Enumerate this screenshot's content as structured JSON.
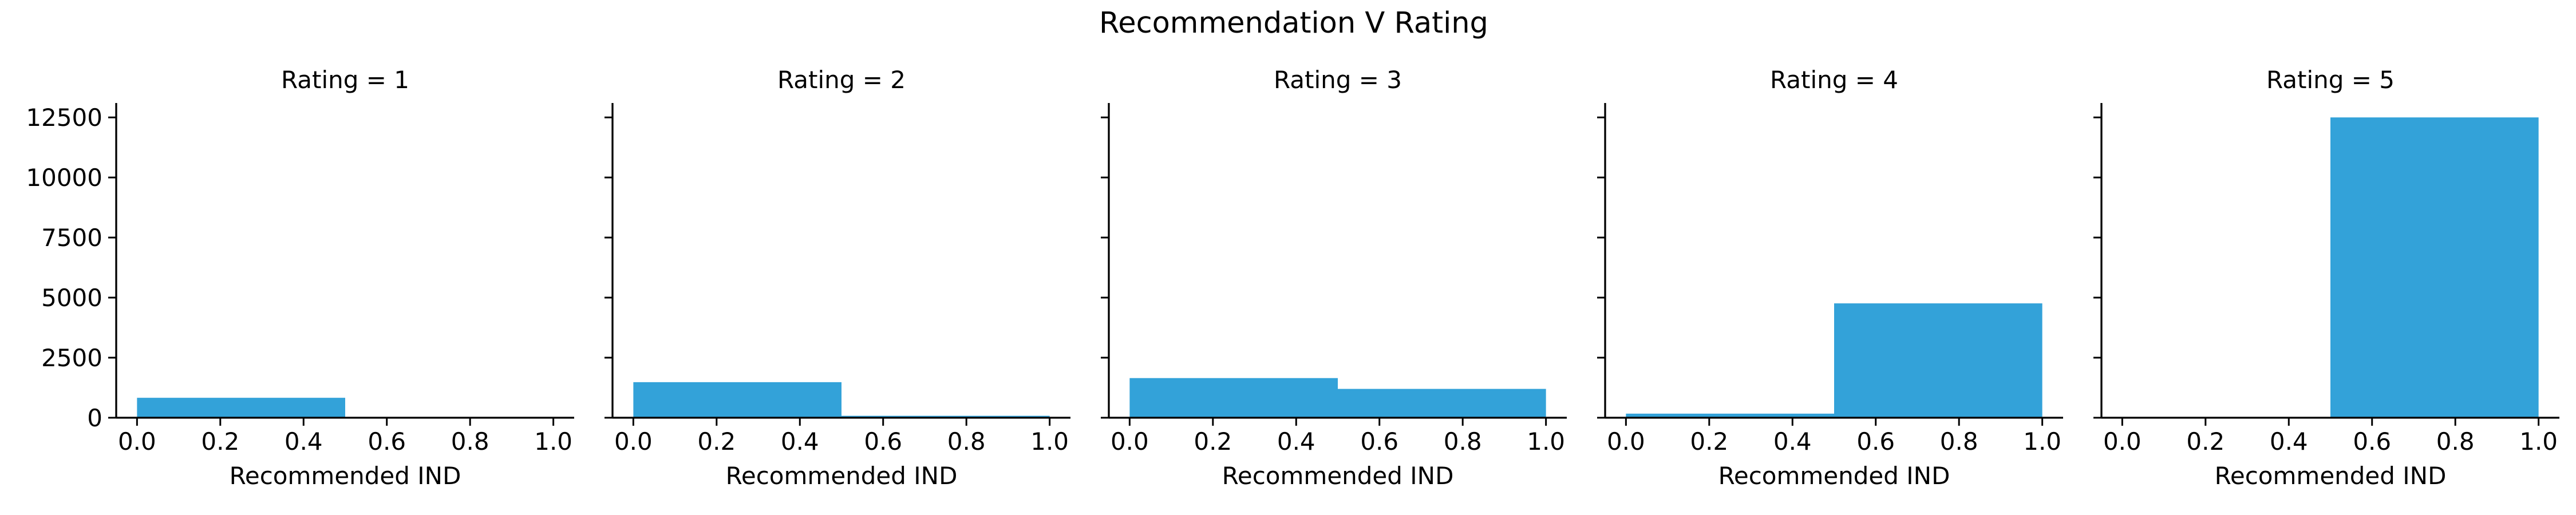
{
  "chart_data": {
    "type": "bar",
    "title": "Recommendation V Rating",
    "bar_color": "#33a2d9",
    "xlabel": "Recommended IND",
    "ylabel": "",
    "xlim": [
      -0.05,
      1.05
    ],
    "ylim": [
      0,
      13100
    ],
    "xticks": [
      "0.0",
      "0.2",
      "0.4",
      "0.6",
      "0.8",
      "1.0"
    ],
    "yticks": [
      "0",
      "2500",
      "5000",
      "7500",
      "10000",
      "12500"
    ],
    "bin_edges": [
      0.0,
      0.5,
      1.0
    ],
    "grid": false,
    "panels": [
      {
        "title": "Rating = 1",
        "values": [
          830,
          0
        ]
      },
      {
        "title": "Rating = 2",
        "values": [
          1480,
          80
        ]
      },
      {
        "title": "Rating = 3",
        "values": [
          1650,
          1200
        ]
      },
      {
        "title": "Rating = 4",
        "values": [
          170,
          4760
        ]
      },
      {
        "title": "Rating = 5",
        "values": [
          0,
          12500
        ]
      }
    ]
  }
}
